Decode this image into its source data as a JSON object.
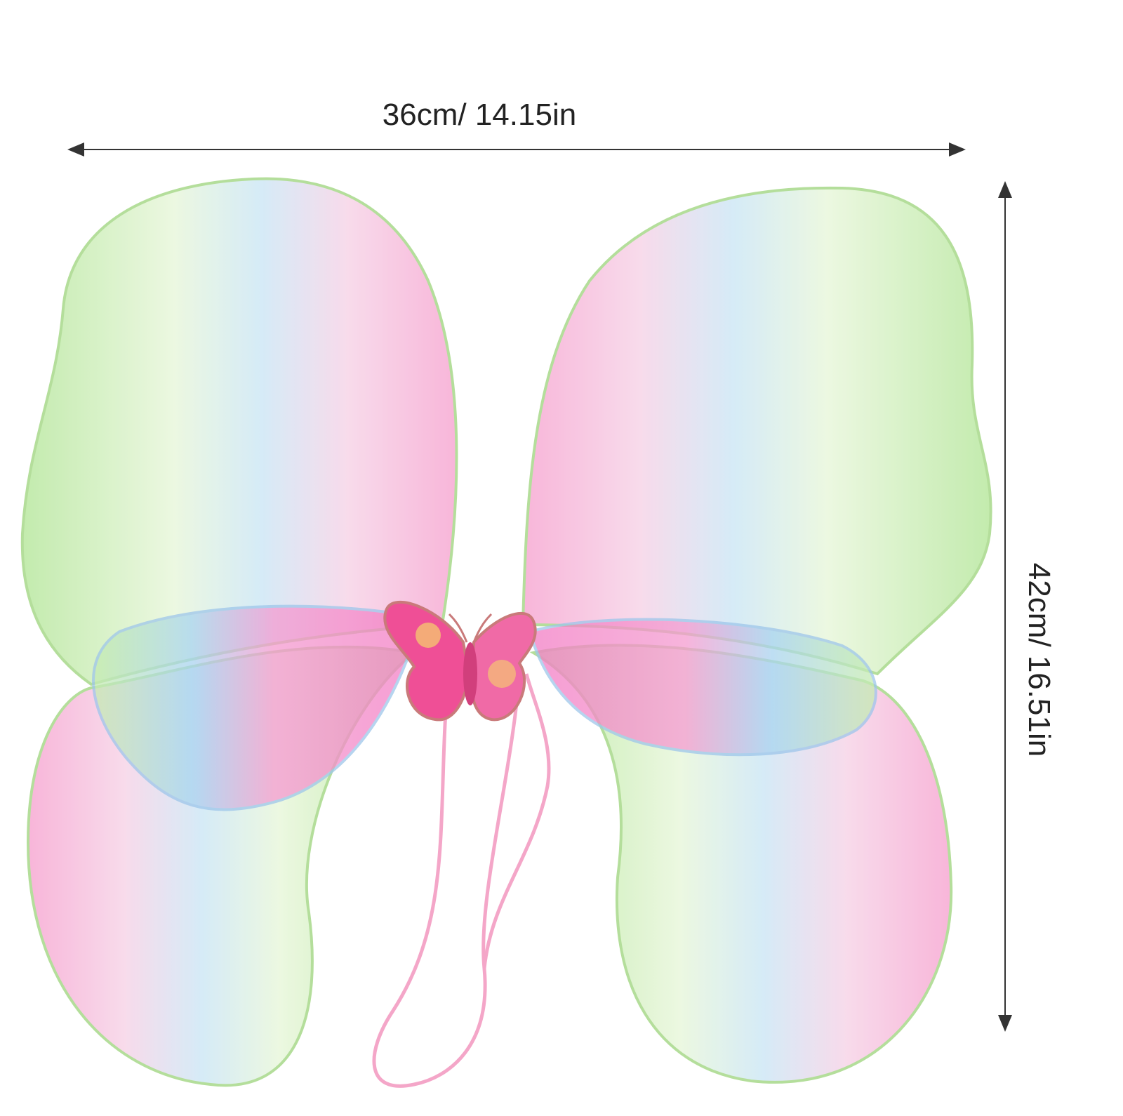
{
  "dimensions": {
    "width": "36cm/ 14.15in",
    "height": "42cm/ 16.51in"
  }
}
